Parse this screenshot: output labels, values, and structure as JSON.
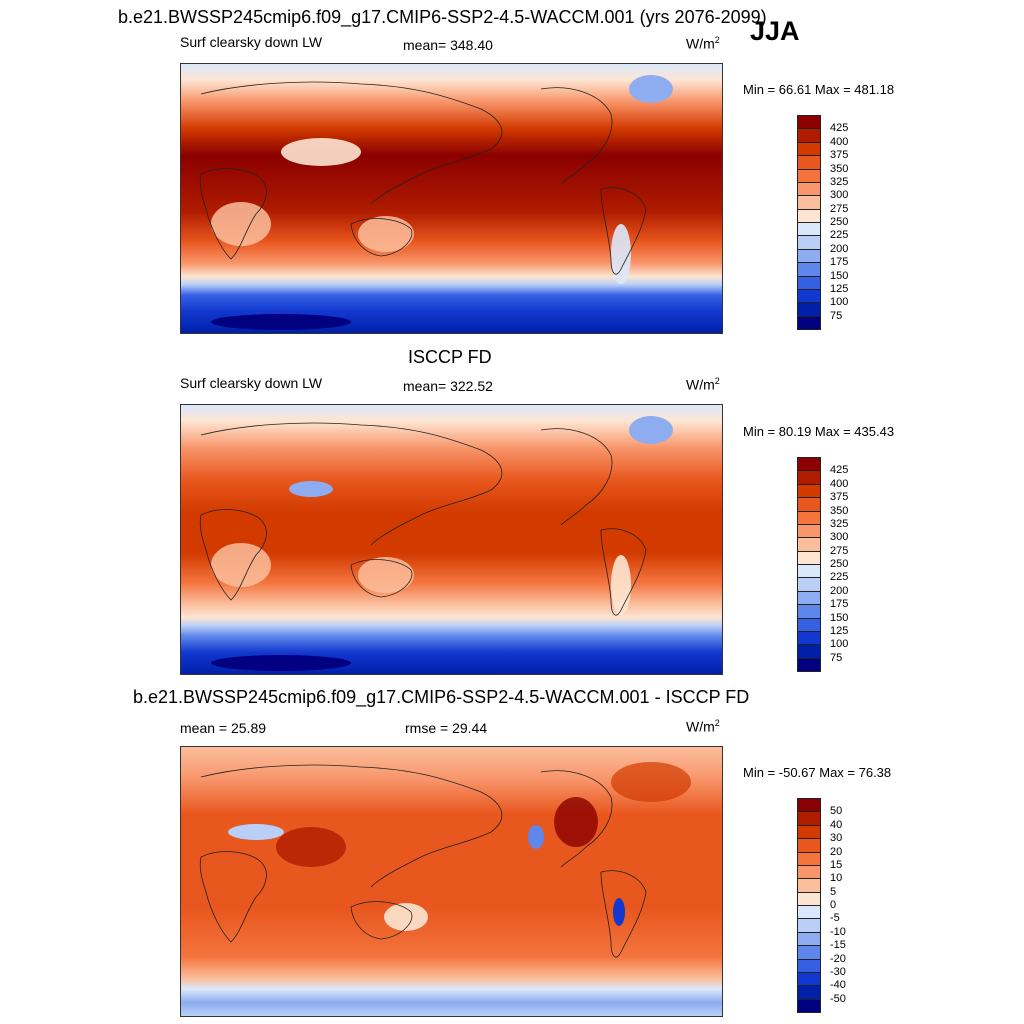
{
  "header": {
    "title": "b.e21.BWSSP245cmip6.f09_g17.CMIP6-SSP2-4.5-WACCM.001 (yrs 2076-2099)",
    "season": "JJA"
  },
  "panels": [
    {
      "title": "",
      "left_label": "Surf clearsky down LW",
      "center_label": "mean= 348.40",
      "units": "W/m",
      "units_sup": "2",
      "minmax": "Min =  66.61 Max = 481.18",
      "colorbar": {
        "ticks": [
          "425",
          "400",
          "375",
          "350",
          "325",
          "300",
          "275",
          "250",
          "225",
          "200",
          "175",
          "150",
          "125",
          "100",
          "75"
        ],
        "colors": [
          "#8b0000",
          "#b01c00",
          "#d23a00",
          "#e8571e",
          "#f4743e",
          "#f8956a",
          "#fbbe9c",
          "#fde5d2",
          "#dbe8fb",
          "#b9cff7",
          "#8eacf0",
          "#5f86ea",
          "#3560e3",
          "#1238d0",
          "#0020a8",
          "#000080"
        ]
      }
    },
    {
      "title": "ISCCP FD",
      "left_label": "Surf clearsky down LW",
      "center_label": "mean= 322.52",
      "units": "W/m",
      "units_sup": "2",
      "minmax": "Min =  80.19 Max = 435.43",
      "colorbar": {
        "ticks": [
          "425",
          "400",
          "375",
          "350",
          "325",
          "300",
          "275",
          "250",
          "225",
          "200",
          "175",
          "150",
          "125",
          "100",
          "75"
        ],
        "colors": [
          "#8b0000",
          "#b01c00",
          "#d23a00",
          "#e8571e",
          "#f4743e",
          "#f8956a",
          "#fbbe9c",
          "#fde5d2",
          "#dbe8fb",
          "#b9cff7",
          "#8eacf0",
          "#5f86ea",
          "#3560e3",
          "#1238d0",
          "#0020a8",
          "#000080"
        ]
      }
    },
    {
      "title": "b.e21.BWSSP245cmip6.f09_g17.CMIP6-SSP2-4.5-WACCM.001 - ISCCP FD",
      "left_label": "mean =  25.89",
      "center_label": "rmse =  29.44",
      "units": "W/m",
      "units_sup": "2",
      "minmax": "Min = -50.67 Max =  76.38",
      "colorbar": {
        "ticks": [
          "50",
          "40",
          "30",
          "20",
          "15",
          "10",
          "5",
          "0",
          "-5",
          "-10",
          "-15",
          "-20",
          "-30",
          "-40",
          "-50"
        ],
        "colors": [
          "#8b0000",
          "#b01c00",
          "#d23a00",
          "#e8571e",
          "#f4743e",
          "#f8956a",
          "#fbbe9c",
          "#fde5d2",
          "#dbe8fb",
          "#b9cff7",
          "#8eacf0",
          "#5f86ea",
          "#3560e3",
          "#1238d0",
          "#0020a8",
          "#000080"
        ]
      }
    }
  ]
}
